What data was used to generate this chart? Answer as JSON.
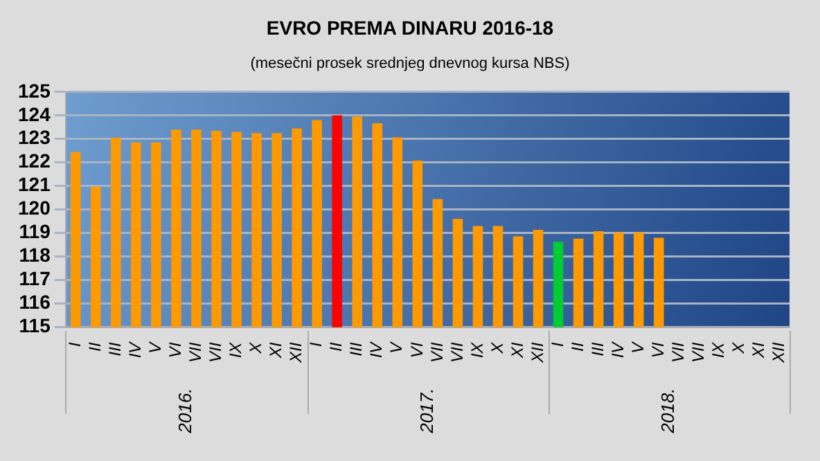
{
  "chart_data": {
    "type": "bar",
    "title": "EVRO PREMA DINARU 2016-18",
    "subtitle": "(mesečni prosek srednjeg dnevnog kursa NBS)",
    "categories": [
      "I",
      "II",
      "III",
      "IV",
      "V",
      "VI",
      "VII",
      "VII",
      "IX",
      "X",
      "XI",
      "XII",
      "I",
      "II",
      "III",
      "IV",
      "V",
      "VI",
      "VII",
      "VII",
      "IX",
      "X",
      "XI",
      "XII",
      "I",
      "II",
      "III",
      "IV",
      "V",
      "VI",
      "VII",
      "VII",
      "IX",
      "X",
      "XI",
      "XII"
    ],
    "values": [
      122.45,
      120.97,
      123.05,
      122.85,
      122.85,
      123.4,
      123.4,
      123.35,
      123.3,
      123.25,
      123.25,
      123.45,
      123.8,
      124.0,
      123.95,
      123.67,
      123.07,
      122.08,
      120.45,
      119.6,
      119.3,
      119.3,
      118.86,
      119.14,
      118.63,
      118.76,
      119.08,
      119.03,
      119.03,
      118.8,
      null,
      null,
      null,
      null,
      null,
      null
    ],
    "colors": [
      "#ff9900",
      "#ff9900",
      "#ff9900",
      "#ff9900",
      "#ff9900",
      "#ff9900",
      "#ff9900",
      "#ff9900",
      "#ff9900",
      "#ff9900",
      "#ff9900",
      "#ff9900",
      "#ff9900",
      "#ff0000",
      "#ff9900",
      "#ff9900",
      "#ff9900",
      "#ff9900",
      "#ff9900",
      "#ff9900",
      "#ff9900",
      "#ff9900",
      "#ff9900",
      "#ff9900",
      "#00cc33",
      "#ff9900",
      "#ff9900",
      "#ff9900",
      "#ff9900",
      "#ff9900",
      "#ff9900",
      "#ff9900",
      "#ff9900",
      "#ff9900",
      "#ff9900",
      "#ff9900"
    ],
    "annotations": [
      "2016.",
      "2017.",
      "2018."
    ],
    "ylim": [
      115,
      125
    ],
    "yticks": [
      115,
      116,
      117,
      118,
      119,
      120,
      121,
      122,
      123,
      124,
      125
    ],
    "grid": "y",
    "legend": false
  }
}
